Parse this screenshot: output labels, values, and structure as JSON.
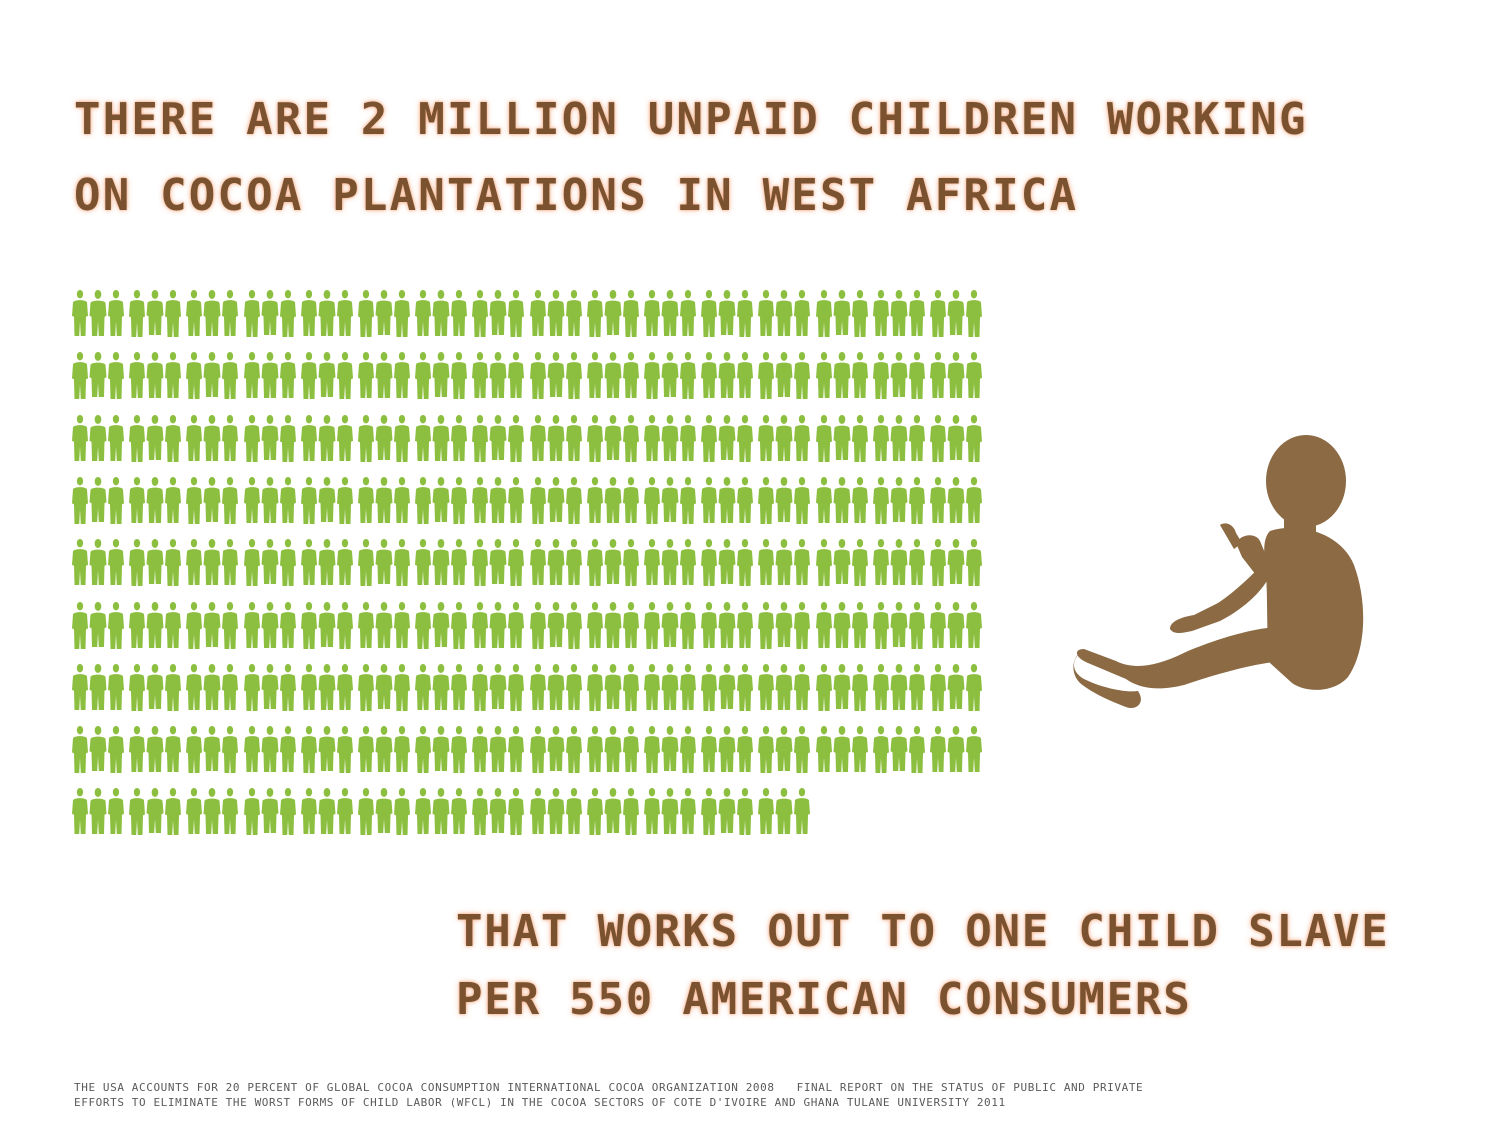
{
  "headline_top": {
    "lines": [
      "THERE ARE 2 MILLION UNPAID CHILDREN WORKING",
      "ON COCOA PLANTATIONS IN WEST AFRICA"
    ]
  },
  "headline_bottom": {
    "lines": [
      "THAT WORKS OUT TO ONE CHILD SLAVE",
      "PER 550 AMERICAN CONSUMERS"
    ]
  },
  "figure_grid": {
    "rows": 9,
    "full_row_count": 16,
    "last_row_count": 13,
    "figure_color": "#8cbf3f"
  },
  "child_figure": {
    "icon": "seated-child-silhouette-icon",
    "color": "#8b6a44"
  },
  "colors": {
    "headline_text": "#7a5230",
    "headline_glow": "#f5aa82",
    "footnote_text": "#5a5a5a"
  },
  "footnote": {
    "line1_part1": "THE USA ACCOUNTS FOR 20 PERCENT OF GLOBAL COCOA CONSUMPTION INTERNATIONAL COCOA ORGANIZATION 2008",
    "line1_part2": "FINAL REPORT ON THE STATUS OF PUBLIC AND PRIVATE",
    "line2": "EFFORTS TO ELIMINATE THE WORST FORMS OF CHILD LABOR (WFCL) IN THE COCOA SECTORS OF COTE D'IVOIRE AND GHANA TULANE UNIVERSITY 2011"
  }
}
